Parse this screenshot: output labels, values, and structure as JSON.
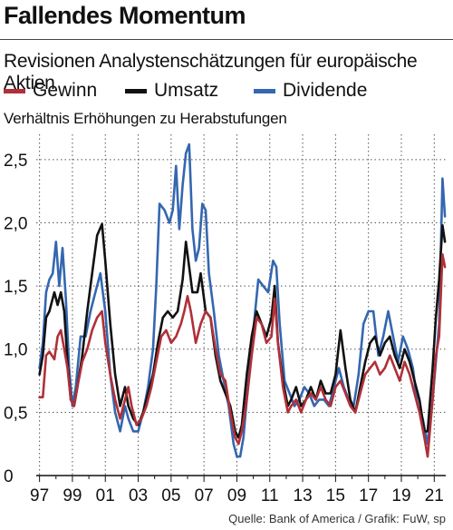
{
  "header": {
    "title": "Fallendes Momentum",
    "subtitle": "Revisionen Analystenschätzungen für europäische Aktien"
  },
  "source": "Quelle: Bank of America / Grafik: FuW, sp",
  "chart_data": {
    "type": "line",
    "ylabel": "Verhältnis Erhöhungen zu Herabstufungen",
    "xlabel": "",
    "ylim": [
      0,
      2.7
    ],
    "xlim": [
      1996.8,
      2021.7
    ],
    "yticks": [
      0,
      0.5,
      1.0,
      1.5,
      2.0,
      2.5
    ],
    "ytick_labels": [
      "0",
      "0,5",
      "1,0",
      "1,5",
      "2,0",
      "2,5"
    ],
    "xticks": [
      1997,
      1999,
      2001,
      2003,
      2005,
      2007,
      2009,
      2011,
      2013,
      2015,
      2017,
      2019,
      2021
    ],
    "xtick_labels": [
      "97",
      "99",
      "01",
      "03",
      "05",
      "07",
      "09",
      "11",
      "13",
      "15",
      "17",
      "19",
      "21"
    ],
    "grid": "dotted",
    "legend_position": "top",
    "series": [
      {
        "name": "Gewinn",
        "color": "#b03038",
        "points": [
          [
            1997.0,
            0.62
          ],
          [
            1997.2,
            0.62
          ],
          [
            1997.4,
            0.95
          ],
          [
            1997.6,
            0.98
          ],
          [
            1997.9,
            0.92
          ],
          [
            1998.1,
            1.1
          ],
          [
            1998.3,
            1.15
          ],
          [
            1998.5,
            1.0
          ],
          [
            1998.7,
            0.85
          ],
          [
            1998.9,
            0.6
          ],
          [
            1999.1,
            0.55
          ],
          [
            1999.3,
            0.7
          ],
          [
            1999.6,
            0.9
          ],
          [
            1999.9,
            1.0
          ],
          [
            2000.2,
            1.15
          ],
          [
            2000.5,
            1.25
          ],
          [
            2000.8,
            1.3
          ],
          [
            2001.0,
            1.05
          ],
          [
            2001.3,
            0.8
          ],
          [
            2001.6,
            0.6
          ],
          [
            2001.9,
            0.45
          ],
          [
            2002.2,
            0.6
          ],
          [
            2002.4,
            0.7
          ],
          [
            2002.6,
            0.55
          ],
          [
            2002.9,
            0.4
          ],
          [
            2003.2,
            0.45
          ],
          [
            2003.5,
            0.55
          ],
          [
            2003.8,
            0.7
          ],
          [
            2004.1,
            0.9
          ],
          [
            2004.4,
            1.1
          ],
          [
            2004.7,
            1.15
          ],
          [
            2005.0,
            1.05
          ],
          [
            2005.3,
            1.1
          ],
          [
            2005.6,
            1.2
          ],
          [
            2005.8,
            1.3
          ],
          [
            2006.0,
            1.42
          ],
          [
            2006.2,
            1.3
          ],
          [
            2006.5,
            1.05
          ],
          [
            2006.8,
            1.2
          ],
          [
            2007.1,
            1.3
          ],
          [
            2007.4,
            1.25
          ],
          [
            2007.7,
            1.0
          ],
          [
            2008.0,
            0.8
          ],
          [
            2008.3,
            0.75
          ],
          [
            2008.6,
            0.5
          ],
          [
            2008.9,
            0.3
          ],
          [
            2009.1,
            0.25
          ],
          [
            2009.3,
            0.35
          ],
          [
            2009.6,
            0.6
          ],
          [
            2009.9,
            0.95
          ],
          [
            2010.2,
            1.25
          ],
          [
            2010.5,
            1.2
          ],
          [
            2010.8,
            1.05
          ],
          [
            2011.1,
            1.1
          ],
          [
            2011.3,
            1.4
          ],
          [
            2011.5,
            1.05
          ],
          [
            2011.8,
            0.7
          ],
          [
            2012.1,
            0.5
          ],
          [
            2012.3,
            0.55
          ],
          [
            2012.6,
            0.6
          ],
          [
            2012.9,
            0.5
          ],
          [
            2013.2,
            0.6
          ],
          [
            2013.5,
            0.65
          ],
          [
            2013.8,
            0.6
          ],
          [
            2014.1,
            0.7
          ],
          [
            2014.4,
            0.6
          ],
          [
            2014.7,
            0.55
          ],
          [
            2015.0,
            0.7
          ],
          [
            2015.3,
            0.75
          ],
          [
            2015.6,
            0.65
          ],
          [
            2015.9,
            0.55
          ],
          [
            2016.2,
            0.5
          ],
          [
            2016.5,
            0.65
          ],
          [
            2016.8,
            0.8
          ],
          [
            2017.1,
            0.85
          ],
          [
            2017.4,
            0.9
          ],
          [
            2017.7,
            0.8
          ],
          [
            2018.0,
            0.85
          ],
          [
            2018.3,
            0.95
          ],
          [
            2018.6,
            0.85
          ],
          [
            2018.9,
            0.75
          ],
          [
            2019.2,
            0.9
          ],
          [
            2019.5,
            0.8
          ],
          [
            2019.8,
            0.65
          ],
          [
            2020.1,
            0.5
          ],
          [
            2020.4,
            0.3
          ],
          [
            2020.6,
            0.15
          ],
          [
            2020.9,
            0.6
          ],
          [
            2021.1,
            0.95
          ],
          [
            2021.3,
            1.1
          ],
          [
            2021.5,
            1.75
          ],
          [
            2021.65,
            1.65
          ]
        ]
      },
      {
        "name": "Umsatz",
        "color": "#111111",
        "points": [
          [
            1997.0,
            0.8
          ],
          [
            1997.2,
            0.95
          ],
          [
            1997.4,
            1.25
          ],
          [
            1997.6,
            1.3
          ],
          [
            1997.9,
            1.45
          ],
          [
            1998.1,
            1.35
          ],
          [
            1998.3,
            1.45
          ],
          [
            1998.5,
            1.3
          ],
          [
            1998.7,
            0.9
          ],
          [
            1998.9,
            0.6
          ],
          [
            1999.1,
            0.55
          ],
          [
            1999.3,
            0.7
          ],
          [
            1999.6,
            0.95
          ],
          [
            1999.9,
            1.3
          ],
          [
            2000.2,
            1.6
          ],
          [
            2000.5,
            1.9
          ],
          [
            2000.8,
            1.99
          ],
          [
            2001.0,
            1.7
          ],
          [
            2001.3,
            1.2
          ],
          [
            2001.6,
            0.8
          ],
          [
            2001.9,
            0.55
          ],
          [
            2002.2,
            0.7
          ],
          [
            2002.4,
            0.55
          ],
          [
            2002.7,
            0.45
          ],
          [
            2003.0,
            0.4
          ],
          [
            2003.3,
            0.5
          ],
          [
            2003.6,
            0.65
          ],
          [
            2003.9,
            0.8
          ],
          [
            2004.2,
            1.05
          ],
          [
            2004.5,
            1.25
          ],
          [
            2004.8,
            1.3
          ],
          [
            2005.1,
            1.25
          ],
          [
            2005.4,
            1.3
          ],
          [
            2005.7,
            1.55
          ],
          [
            2005.9,
            1.85
          ],
          [
            2006.1,
            1.65
          ],
          [
            2006.3,
            1.45
          ],
          [
            2006.6,
            1.45
          ],
          [
            2006.8,
            1.6
          ],
          [
            2007.1,
            1.3
          ],
          [
            2007.4,
            1.25
          ],
          [
            2007.7,
            0.95
          ],
          [
            2008.0,
            0.75
          ],
          [
            2008.3,
            0.65
          ],
          [
            2008.6,
            0.55
          ],
          [
            2008.9,
            0.35
          ],
          [
            2009.1,
            0.3
          ],
          [
            2009.3,
            0.4
          ],
          [
            2009.6,
            0.8
          ],
          [
            2009.9,
            1.1
          ],
          [
            2010.2,
            1.3
          ],
          [
            2010.5,
            1.2
          ],
          [
            2010.8,
            1.1
          ],
          [
            2011.1,
            1.25
          ],
          [
            2011.3,
            1.5
          ],
          [
            2011.5,
            1.05
          ],
          [
            2011.8,
            0.75
          ],
          [
            2012.1,
            0.55
          ],
          [
            2012.3,
            0.6
          ],
          [
            2012.6,
            0.7
          ],
          [
            2012.9,
            0.55
          ],
          [
            2013.2,
            0.6
          ],
          [
            2013.5,
            0.7
          ],
          [
            2013.8,
            0.6
          ],
          [
            2014.1,
            0.75
          ],
          [
            2014.4,
            0.65
          ],
          [
            2014.7,
            0.65
          ],
          [
            2015.0,
            0.8
          ],
          [
            2015.3,
            1.15
          ],
          [
            2015.6,
            0.85
          ],
          [
            2015.9,
            0.6
          ],
          [
            2016.2,
            0.5
          ],
          [
            2016.5,
            0.7
          ],
          [
            2016.8,
            0.9
          ],
          [
            2017.1,
            1.05
          ],
          [
            2017.4,
            1.1
          ],
          [
            2017.7,
            0.95
          ],
          [
            2018.0,
            1.05
          ],
          [
            2018.3,
            1.1
          ],
          [
            2018.6,
            0.95
          ],
          [
            2018.9,
            0.85
          ],
          [
            2019.2,
            1.0
          ],
          [
            2019.5,
            0.9
          ],
          [
            2019.8,
            0.75
          ],
          [
            2020.1,
            0.6
          ],
          [
            2020.4,
            0.35
          ],
          [
            2020.6,
            0.35
          ],
          [
            2020.9,
            0.85
          ],
          [
            2021.1,
            1.25
          ],
          [
            2021.3,
            1.55
          ],
          [
            2021.5,
            1.98
          ],
          [
            2021.65,
            1.85
          ]
        ]
      },
      {
        "name": "Dividende",
        "color": "#3467b0",
        "points": [
          [
            1997.0,
            0.85
          ],
          [
            1997.2,
            1.05
          ],
          [
            1997.4,
            1.45
          ],
          [
            1997.6,
            1.55
          ],
          [
            1997.8,
            1.6
          ],
          [
            1998.0,
            1.85
          ],
          [
            1998.2,
            1.5
          ],
          [
            1998.4,
            1.8
          ],
          [
            1998.6,
            1.4
          ],
          [
            1998.8,
            0.85
          ],
          [
            1999.0,
            0.55
          ],
          [
            1999.2,
            0.7
          ],
          [
            1999.5,
            1.1
          ],
          [
            1999.8,
            1.1
          ],
          [
            2000.1,
            1.3
          ],
          [
            2000.4,
            1.45
          ],
          [
            2000.7,
            1.6
          ],
          [
            2001.0,
            1.3
          ],
          [
            2001.3,
            0.8
          ],
          [
            2001.6,
            0.5
          ],
          [
            2001.9,
            0.35
          ],
          [
            2002.2,
            0.55
          ],
          [
            2002.4,
            0.45
          ],
          [
            2002.7,
            0.35
          ],
          [
            2003.0,
            0.35
          ],
          [
            2003.3,
            0.5
          ],
          [
            2003.6,
            0.7
          ],
          [
            2003.9,
            1.0
          ],
          [
            2004.1,
            1.5
          ],
          [
            2004.3,
            2.15
          ],
          [
            2004.6,
            2.1
          ],
          [
            2004.9,
            2.0
          ],
          [
            2005.1,
            2.1
          ],
          [
            2005.3,
            2.45
          ],
          [
            2005.5,
            1.95
          ],
          [
            2005.7,
            2.3
          ],
          [
            2005.9,
            2.55
          ],
          [
            2006.1,
            2.62
          ],
          [
            2006.3,
            1.95
          ],
          [
            2006.5,
            1.7
          ],
          [
            2006.7,
            1.8
          ],
          [
            2006.9,
            2.15
          ],
          [
            2007.1,
            2.1
          ],
          [
            2007.3,
            1.6
          ],
          [
            2007.6,
            1.3
          ],
          [
            2007.9,
            0.95
          ],
          [
            2008.2,
            0.75
          ],
          [
            2008.5,
            0.55
          ],
          [
            2008.8,
            0.25
          ],
          [
            2009.0,
            0.15
          ],
          [
            2009.2,
            0.15
          ],
          [
            2009.4,
            0.3
          ],
          [
            2009.7,
            0.75
          ],
          [
            2010.0,
            1.15
          ],
          [
            2010.3,
            1.55
          ],
          [
            2010.6,
            1.5
          ],
          [
            2010.9,
            1.45
          ],
          [
            2011.2,
            1.7
          ],
          [
            2011.4,
            1.65
          ],
          [
            2011.6,
            1.2
          ],
          [
            2011.9,
            0.75
          ],
          [
            2012.2,
            0.65
          ],
          [
            2012.5,
            0.55
          ],
          [
            2012.8,
            0.6
          ],
          [
            2013.1,
            0.7
          ],
          [
            2013.4,
            0.65
          ],
          [
            2013.7,
            0.55
          ],
          [
            2014.0,
            0.6
          ],
          [
            2014.3,
            0.6
          ],
          [
            2014.6,
            0.55
          ],
          [
            2014.9,
            0.7
          ],
          [
            2015.2,
            0.85
          ],
          [
            2015.5,
            0.7
          ],
          [
            2015.8,
            0.6
          ],
          [
            2016.1,
            0.55
          ],
          [
            2016.4,
            0.8
          ],
          [
            2016.7,
            1.2
          ],
          [
            2017.0,
            1.3
          ],
          [
            2017.3,
            1.3
          ],
          [
            2017.6,
            0.95
          ],
          [
            2017.9,
            1.1
          ],
          [
            2018.2,
            1.3
          ],
          [
            2018.5,
            1.1
          ],
          [
            2018.8,
            0.9
          ],
          [
            2019.1,
            1.1
          ],
          [
            2019.4,
            1.0
          ],
          [
            2019.7,
            0.85
          ],
          [
            2020.0,
            0.55
          ],
          [
            2020.3,
            0.45
          ],
          [
            2020.6,
            0.25
          ],
          [
            2020.9,
            0.6
          ],
          [
            2021.1,
            0.9
          ],
          [
            2021.3,
            1.2
          ],
          [
            2021.5,
            2.35
          ],
          [
            2021.65,
            2.05
          ]
        ]
      }
    ]
  }
}
